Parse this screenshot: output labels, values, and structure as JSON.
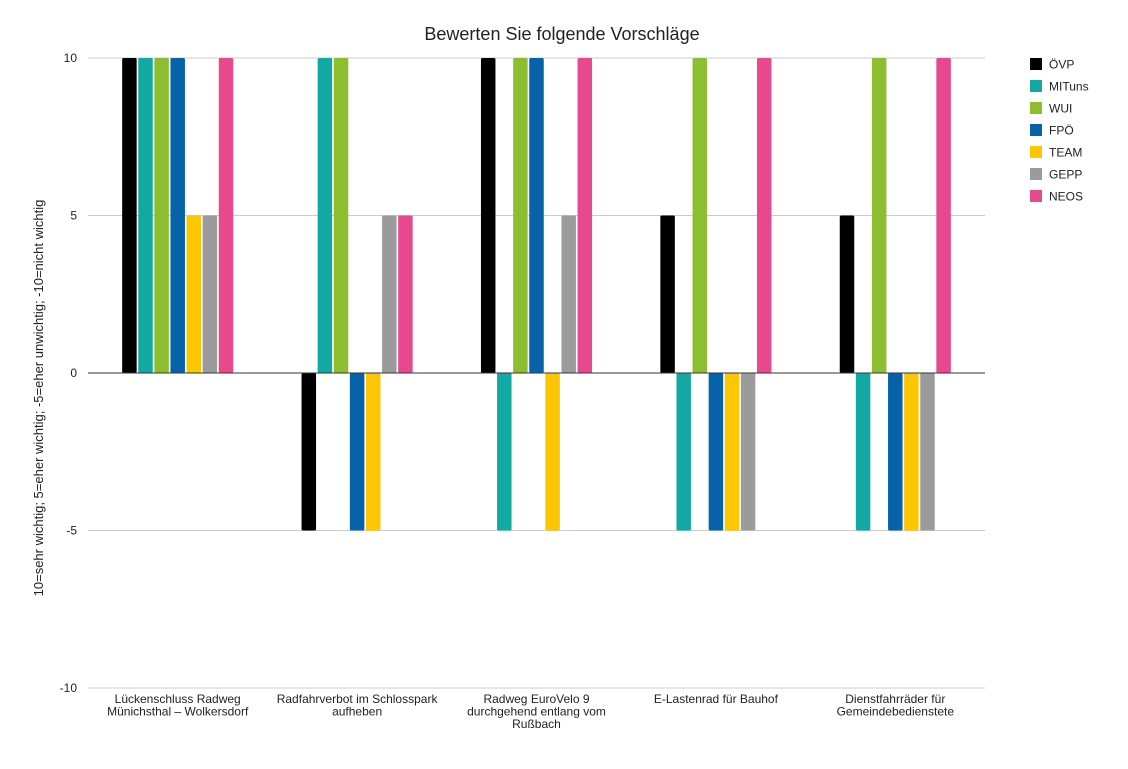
{
  "chart_data": {
    "type": "bar",
    "title": "Bewerten Sie folgende Vorschläge",
    "xlabel": "",
    "ylabel": "10=sehr wichtig; 5=eher wichtig; -5=eher unwichtig; -10=nicht wichtig",
    "ylim": [
      -10,
      10
    ],
    "yticks": [
      -10,
      -5,
      0,
      5,
      10
    ],
    "grid": true,
    "legend_position": "right",
    "categories": [
      [
        "Lückenschluss Radweg",
        "Münichsthal – Wolkersdorf"
      ],
      [
        "Radfahrverbot im Schlosspark",
        "aufheben"
      ],
      [
        "Radweg EuroVelo 9",
        "durchgehend entlang vom",
        "Rußbach"
      ],
      [
        "E-Lastenrad für Bauhof"
      ],
      [
        "Dienstfahrräder für",
        "Gemeindebedienstete"
      ]
    ],
    "series": [
      {
        "name": "ÖVP",
        "color": "#000000",
        "values": [
          10,
          -5,
          10,
          5,
          5
        ]
      },
      {
        "name": "MITuns",
        "color": "#12a9a5",
        "values": [
          10,
          10,
          -5,
          -5,
          -5
        ]
      },
      {
        "name": "WUI",
        "color": "#8cbe2f",
        "values": [
          10,
          10,
          10,
          10,
          10
        ]
      },
      {
        "name": "FPÖ",
        "color": "#0662a9",
        "values": [
          10,
          -5,
          10,
          -5,
          -5
        ]
      },
      {
        "name": "TEAM",
        "color": "#fcc602",
        "values": [
          5,
          -5,
          -5,
          -5,
          -5
        ]
      },
      {
        "name": "GEPP",
        "color": "#9b9b9b",
        "values": [
          5,
          5,
          5,
          -5,
          -5
        ]
      },
      {
        "name": "NEOS",
        "color": "#e8488e",
        "values": [
          10,
          5,
          10,
          10,
          10
        ]
      }
    ]
  }
}
